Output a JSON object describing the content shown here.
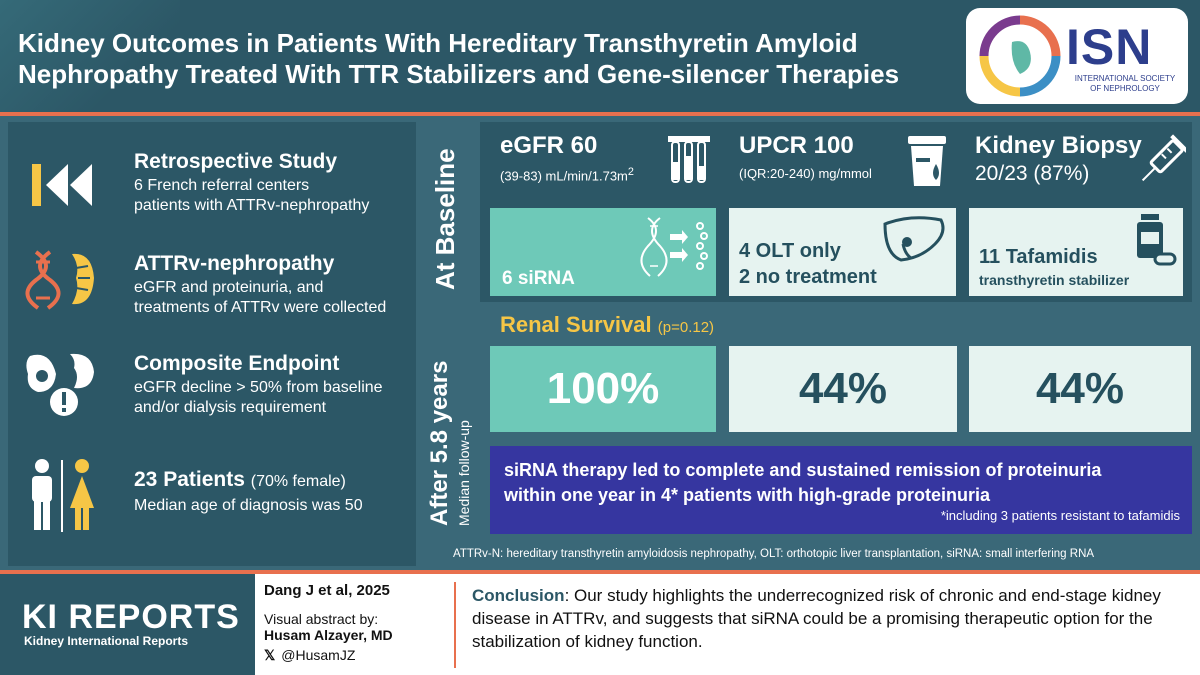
{
  "header": {
    "title_line1": "Kidney Outcomes in Patients With Hereditary Transthyretin Amyloid",
    "title_line2": "Nephropathy Treated With TTR Stabilizers and Gene-silencer Therapies",
    "logo_text": "ISN",
    "logo_sub_line1": "INTERNATIONAL SOCIETY",
    "logo_sub_line2": "OF NEPHROLOGY"
  },
  "left": {
    "study": {
      "title": "Retrospective Study",
      "line1": "6 French referral centers",
      "line2": "patients with ATTRv-nephropathy",
      "icon": "rewind-icon"
    },
    "attr": {
      "title": "ATTRv-nephropathy",
      "line1": "eGFR and proteinuria, and",
      "line2": "treatments of ATTRv were collected",
      "icon": "dna-kidney-icon"
    },
    "endpoint": {
      "title": "Composite Endpoint",
      "line1": "eGFR decline > 50% from baseline",
      "line2": "and/or dialysis requirement",
      "icon": "kidney-warning-icon"
    },
    "patients": {
      "title": "23 Patients",
      "title_note": "(70% female)",
      "line1": "Median age of diagnosis was 50",
      "icon": "people-icon"
    }
  },
  "baseline": {
    "label": "At Baseline",
    "egfr": {
      "value": "eGFR 60",
      "detail": "(39-83) mL/min/1.73m",
      "sup": "2"
    },
    "upcr": {
      "value": "UPCR 100",
      "detail": "(IQR:20-240) mg/mmol"
    },
    "biopsy": {
      "title": "Kidney Biopsy",
      "value": "20/23 (87%)"
    },
    "groups": [
      {
        "line1": "6 siRNA"
      },
      {
        "line1": "4 OLT only",
        "line2": "2 no treatment"
      },
      {
        "line1": "11 Tafamidis",
        "line2": "transthyretin stabilizer"
      }
    ]
  },
  "after": {
    "label_big": "After  5.8 years",
    "label_small": "Median follow-up",
    "renal_title": "Renal Survival",
    "renal_p": "(p=0.12)",
    "survival": [
      "100%",
      "44%",
      "44%"
    ],
    "sirna_line1": "siRNA therapy led to complete and sustained remission of proteinuria",
    "sirna_line2": "within one year in 4* patients with high-grade proteinuria",
    "sirna_note": "*including 3 patients resistant to tafamidis"
  },
  "footnote": "ATTRv-N: hereditary transthyretin amyloidosis nephropathy, OLT: orthotopic liver transplantation, siRNA: small interfering RNA",
  "footer": {
    "journal": "KI REPORTS",
    "journal_sub": "Kidney International Reports",
    "ref": "Dang J et al, 2025",
    "abstract_by": "Visual abstract by:",
    "author": "Husam Alzayer, MD",
    "handle": "@HusamJZ",
    "conclusion_label": "Conclusion",
    "conclusion_text": ": Our study highlights the underrecognized risk of chronic and end-stage kidney disease in ATTRv, and suggests that siRNA could be a promising therapeutic option for the stabilization of kidney function."
  },
  "colors": {
    "teal": "#6ec9b8",
    "dark": "#2c5766",
    "bg": "#3a6878",
    "accent": "#e8704e",
    "yellow": "#f6c646",
    "purple": "#3636a0",
    "navy": "#2d3e8c"
  }
}
